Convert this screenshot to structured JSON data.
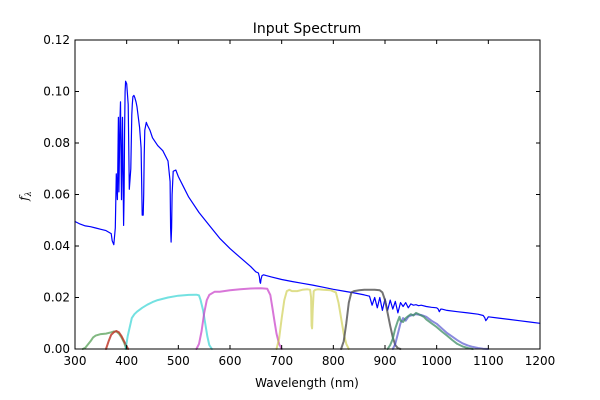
{
  "chart_data": {
    "type": "line",
    "title": "Input Spectrum",
    "xlabel": "Wavelength (nm)",
    "ylabel": "f",
    "ylabel_subscript": "λ",
    "xlim": [
      300,
      1200
    ],
    "ylim": [
      0,
      0.12
    ],
    "xticks": [
      300,
      400,
      500,
      600,
      700,
      800,
      900,
      1000,
      1100,
      1200
    ],
    "yticks": [
      0.0,
      0.02,
      0.04,
      0.06,
      0.08,
      0.1,
      0.12
    ],
    "ytick_labels": [
      "0.00",
      "0.02",
      "0.04",
      "0.06",
      "0.08",
      "0.10",
      "0.12"
    ],
    "grid": false,
    "series": [
      {
        "color": "#0000ff",
        "width": 1.2,
        "opacity": 1,
        "x": [
          300,
          310,
          320,
          330,
          340,
          350,
          360,
          370,
          372,
          375,
          378,
          380,
          382,
          384,
          385,
          387,
          388,
          390,
          392,
          394,
          395,
          396,
          397,
          398,
          400,
          403,
          405,
          408,
          410,
          411,
          412,
          414,
          416,
          418,
          420,
          425,
          428,
          430,
          432,
          433,
          434,
          435,
          438,
          440,
          445,
          450,
          460,
          470,
          480,
          484,
          485,
          486,
          487,
          488,
          490,
          495,
          500,
          510,
          520,
          540,
          560,
          580,
          600,
          620,
          640,
          650,
          655,
          657,
          658,
          659,
          660,
          662,
          665,
          670,
          680,
          700,
          720,
          740,
          760,
          780,
          800,
          820,
          840,
          860,
          870,
          875,
          880,
          885,
          890,
          895,
          900,
          905,
          910,
          915,
          920,
          925,
          930,
          935,
          940,
          945,
          950,
          955,
          960,
          965,
          970,
          980,
          990,
          1000,
          1003,
          1005,
          1008,
          1010,
          1020,
          1040,
          1060,
          1080,
          1090,
          1093,
          1095,
          1098,
          1100,
          1120,
          1140,
          1160,
          1180,
          1200
        ],
        "y": [
          0.0495,
          0.0485,
          0.0478,
          0.0475,
          0.047,
          0.0465,
          0.046,
          0.0448,
          0.042,
          0.0405,
          0.047,
          0.068,
          0.058,
          0.09,
          0.061,
          0.088,
          0.096,
          0.058,
          0.09,
          0.048,
          0.06,
          0.085,
          0.1,
          0.104,
          0.103,
          0.095,
          0.062,
          0.07,
          0.091,
          0.095,
          0.098,
          0.0985,
          0.0975,
          0.096,
          0.094,
          0.086,
          0.078,
          0.052,
          0.052,
          0.06,
          0.075,
          0.085,
          0.088,
          0.087,
          0.085,
          0.082,
          0.079,
          0.077,
          0.073,
          0.065,
          0.047,
          0.0415,
          0.047,
          0.06,
          0.069,
          0.0695,
          0.067,
          0.063,
          0.059,
          0.053,
          0.048,
          0.043,
          0.039,
          0.0355,
          0.032,
          0.03,
          0.0295,
          0.028,
          0.026,
          0.0255,
          0.027,
          0.0285,
          0.0288,
          0.0285,
          0.028,
          0.027,
          0.0262,
          0.0255,
          0.0248,
          0.024,
          0.0232,
          0.0225,
          0.0218,
          0.021,
          0.0205,
          0.017,
          0.02,
          0.016,
          0.02,
          0.015,
          0.0195,
          0.015,
          0.019,
          0.0155,
          0.0185,
          0.014,
          0.018,
          0.0165,
          0.018,
          0.016,
          0.0175,
          0.017,
          0.0172,
          0.0168,
          0.017,
          0.0165,
          0.0162,
          0.016,
          0.0155,
          0.0145,
          0.0155,
          0.0155,
          0.015,
          0.0145,
          0.014,
          0.0135,
          0.013,
          0.0122,
          0.011,
          0.0118,
          0.0125,
          0.012,
          0.0115,
          0.011,
          0.0105,
          0.01
        ]
      },
      {
        "color": "#4c9a4c",
        "width": 2,
        "opacity": 0.7,
        "x": [
          315,
          320,
          330,
          335,
          340,
          350,
          360,
          370,
          375,
          380,
          385,
          390,
          395,
          398,
          400
        ],
        "y": [
          0.0,
          0.0005,
          0.003,
          0.0045,
          0.0052,
          0.0058,
          0.006,
          0.0065,
          0.0068,
          0.0068,
          0.006,
          0.0045,
          0.0025,
          0.0008,
          0.0
        ]
      },
      {
        "color": "#c0392b",
        "width": 2,
        "opacity": 0.85,
        "x": [
          360,
          365,
          370,
          375,
          380,
          385,
          390,
          395,
          400,
          403
        ],
        "y": [
          0.0,
          0.003,
          0.0055,
          0.0065,
          0.007,
          0.0065,
          0.005,
          0.003,
          0.001,
          0.0
        ]
      },
      {
        "color": "#00c8c8",
        "width": 2,
        "opacity": 0.55,
        "x": [
          398,
          402,
          410,
          415,
          420,
          430,
          440,
          450,
          460,
          480,
          500,
          520,
          535,
          540,
          543,
          548,
          552,
          556,
          560,
          565
        ],
        "y": [
          0.0,
          0.005,
          0.012,
          0.0135,
          0.0145,
          0.016,
          0.0172,
          0.0182,
          0.019,
          0.02,
          0.0207,
          0.021,
          0.0211,
          0.0208,
          0.019,
          0.015,
          0.01,
          0.005,
          0.0015,
          0.0
        ]
      },
      {
        "color": "#c83cc8",
        "width": 2,
        "opacity": 0.7,
        "x": [
          535,
          540,
          545,
          550,
          555,
          560,
          570,
          580,
          600,
          620,
          640,
          660,
          672,
          678,
          682,
          686,
          690,
          695,
          700
        ],
        "y": [
          0.0,
          0.002,
          0.007,
          0.014,
          0.019,
          0.021,
          0.0222,
          0.0222,
          0.0228,
          0.0232,
          0.0235,
          0.0236,
          0.0234,
          0.021,
          0.016,
          0.011,
          0.006,
          0.002,
          0.0
        ]
      },
      {
        "color": "#c8c83c",
        "width": 2,
        "opacity": 0.6,
        "x": [
          690,
          695,
          700,
          705,
          710,
          715,
          720,
          730,
          740,
          750,
          755,
          757,
          758,
          759,
          760,
          762,
          765,
          770,
          780,
          795,
          805,
          810,
          815,
          820,
          825,
          830
        ],
        "y": [
          0.0,
          0.004,
          0.012,
          0.019,
          0.0225,
          0.023,
          0.0225,
          0.0225,
          0.023,
          0.0232,
          0.023,
          0.02,
          0.009,
          0.008,
          0.015,
          0.0225,
          0.023,
          0.0232,
          0.023,
          0.0228,
          0.022,
          0.018,
          0.012,
          0.006,
          0.002,
          0.0
        ]
      },
      {
        "color": "#505050",
        "width": 2,
        "opacity": 0.8,
        "x": [
          815,
          820,
          825,
          830,
          835,
          840,
          850,
          860,
          870,
          880,
          890,
          895,
          900,
          905,
          910,
          915,
          920,
          925,
          930
        ],
        "y": [
          0.0,
          0.003,
          0.01,
          0.018,
          0.022,
          0.0225,
          0.0228,
          0.023,
          0.023,
          0.023,
          0.0228,
          0.022,
          0.019,
          0.014,
          0.009,
          0.0045,
          0.0015,
          0.0003,
          0.0
        ]
      },
      {
        "color": "#3c3cc8",
        "width": 2,
        "opacity": 0.6,
        "x": [
          915,
          920,
          925,
          930,
          935,
          940,
          945,
          950,
          960,
          970,
          980,
          990,
          1000,
          1010,
          1020,
          1030,
          1040,
          1050,
          1060,
          1070,
          1080,
          1090,
          1100
        ],
        "y": [
          0.0,
          0.002,
          0.006,
          0.01,
          0.012,
          0.011,
          0.0125,
          0.013,
          0.0135,
          0.0132,
          0.0125,
          0.011,
          0.0098,
          0.008,
          0.0062,
          0.0048,
          0.0034,
          0.0022,
          0.0014,
          0.0008,
          0.0004,
          0.0001,
          0.0
        ]
      },
      {
        "color": "#3c8c64",
        "width": 2,
        "opacity": 0.75,
        "x": [
          905,
          910,
          915,
          920,
          925,
          928,
          930,
          935,
          940,
          945,
          950,
          955,
          960,
          965,
          970,
          975,
          980,
          990,
          1000,
          1010,
          1020,
          1030,
          1040,
          1050,
          1060,
          1070
        ],
        "y": [
          0.0,
          0.0015,
          0.004,
          0.008,
          0.011,
          0.0125,
          0.011,
          0.0105,
          0.012,
          0.0128,
          0.0135,
          0.013,
          0.014,
          0.0135,
          0.013,
          0.0125,
          0.0115,
          0.01,
          0.0085,
          0.0068,
          0.0052,
          0.0035,
          0.002,
          0.001,
          0.0004,
          0.0
        ]
      }
    ]
  }
}
